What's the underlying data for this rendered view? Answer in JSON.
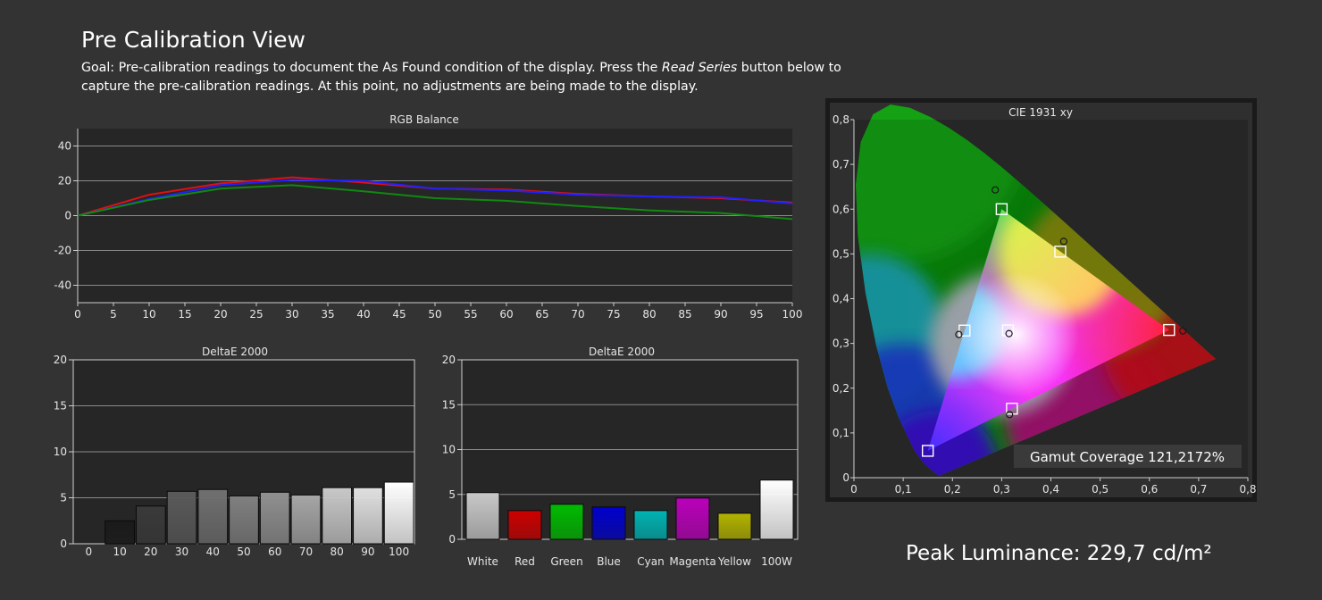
{
  "page": {
    "title": "Pre Calibration View",
    "goal_before": "Goal: Pre-calibration readings to document the As Found condition of the display. Press the ",
    "goal_emphasis": "Read Series",
    "goal_after": " button below to capture the pre-calibration readings. At this point, no adjustments are being made to the display.",
    "peak_luminance": "Peak Luminance: 229,7 cd/m²"
  },
  "chart_data": [
    {
      "type": "line",
      "title": "RGB Balance",
      "x": [
        0,
        10,
        20,
        30,
        40,
        50,
        60,
        70,
        80,
        90,
        100
      ],
      "x_ticks": [
        "0",
        "5",
        "10",
        "15",
        "20",
        "25",
        "30",
        "35",
        "40",
        "45",
        "50",
        "55",
        "60",
        "65",
        "70",
        "75",
        "80",
        "85",
        "90",
        "95",
        "100"
      ],
      "xlim": [
        0,
        100
      ],
      "y_ticks": [
        "40",
        "20",
        "0",
        "-20",
        "-40"
      ],
      "ylim": [
        -50,
        50
      ],
      "grid": true,
      "series": [
        {
          "color": "#e01010",
          "values": [
            0,
            12,
            18.5,
            22,
            19,
            15.5,
            15,
            12.5,
            11,
            10,
            7.5
          ]
        },
        {
          "color": "#2020ff",
          "values": [
            0,
            9.5,
            17.5,
            20.5,
            20,
            15.5,
            14.5,
            12,
            11,
            10.5,
            7
          ]
        },
        {
          "color": "#118811",
          "values": [
            0,
            9,
            15.5,
            17.5,
            14,
            10,
            8.5,
            5.5,
            3,
            1.5,
            -2
          ]
        }
      ]
    },
    {
      "type": "bar",
      "title": "DeltaE 2000",
      "categories": [
        "0",
        "10",
        "20",
        "30",
        "40",
        "50",
        "60",
        "70",
        "80",
        "90",
        "100"
      ],
      "values": [
        0,
        2.5,
        4.1,
        5.7,
        5.9,
        5.2,
        5.6,
        5.3,
        6.1,
        6.1,
        6.7
      ],
      "bar_colors": [
        "#000000",
        "#1a1a1a",
        "#3a3a3a",
        "#5a5a5a",
        "#707070",
        "#808080",
        "#909090",
        "#a6a6a6",
        "#c8c8c8",
        "#e0e0e0",
        "#ffffff"
      ],
      "y_ticks": [
        "20",
        "15",
        "10",
        "5",
        "0"
      ],
      "ylim": [
        0,
        20
      ],
      "grid": true
    },
    {
      "type": "bar",
      "title": "DeltaE 2000",
      "categories": [
        "White",
        "Red",
        "Green",
        "Blue",
        "Cyan",
        "Magenta",
        "Yellow",
        "100W"
      ],
      "values": [
        5.2,
        3.2,
        3.9,
        3.6,
        3.2,
        4.6,
        2.9,
        6.6
      ],
      "bar_colors": [
        "#c8c8c8",
        "#cc0000",
        "#00bb00",
        "#0000cc",
        "#00b3b3",
        "#bb00bb",
        "#b3b300",
        "#ffffff"
      ],
      "y_ticks": [
        "20",
        "15",
        "10",
        "5",
        "0"
      ],
      "ylim": [
        0,
        20
      ],
      "grid": true
    },
    {
      "type": "scatter",
      "title": "CIE 1931 xy",
      "x_ticks": [
        "0",
        "0,1",
        "0,2",
        "0,3",
        "0,4",
        "0,5",
        "0,6",
        "0,7",
        "0,8"
      ],
      "y_ticks": [
        "0,8",
        "0,7",
        "0,6",
        "0,5",
        "0,4",
        "0,3",
        "0,2",
        "0,1",
        "0"
      ],
      "xlim": [
        0,
        0.8
      ],
      "ylim": [
        0,
        0.8
      ],
      "target_points": [
        {
          "x": 0.64,
          "y": 0.33
        },
        {
          "x": 0.3,
          "y": 0.6
        },
        {
          "x": 0.15,
          "y": 0.06
        },
        {
          "x": 0.419,
          "y": 0.505
        },
        {
          "x": 0.2246,
          "y": 0.3287
        },
        {
          "x": 0.3209,
          "y": 0.1542
        },
        {
          "x": 0.3127,
          "y": 0.329
        }
      ],
      "measured_points": [
        {
          "x": 0.668,
          "y": 0.328
        },
        {
          "x": 0.287,
          "y": 0.643
        },
        {
          "x": 0.426,
          "y": 0.528
        },
        {
          "x": 0.213,
          "y": 0.32
        },
        {
          "x": 0.316,
          "y": 0.141
        },
        {
          "x": 0.315,
          "y": 0.322
        }
      ],
      "gamut_coverage": "Gamut Coverage 121,2172%"
    }
  ]
}
